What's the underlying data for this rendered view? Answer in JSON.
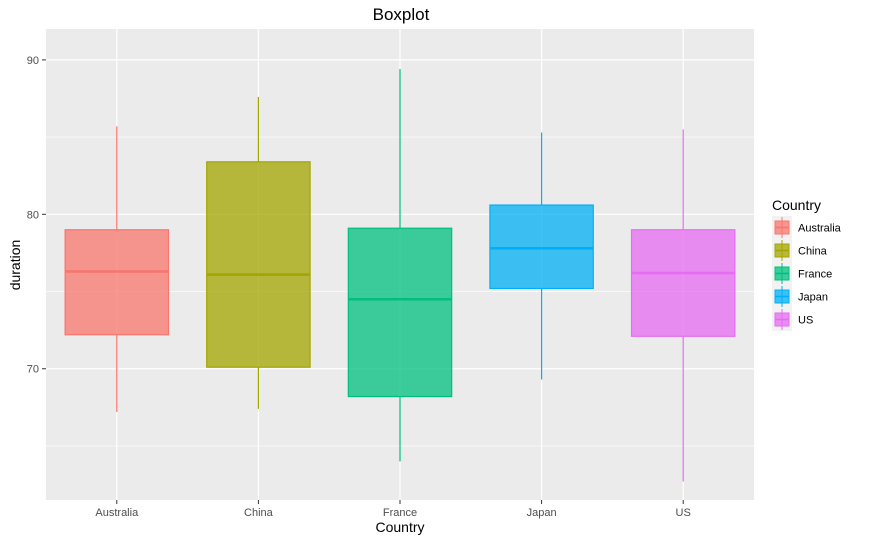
{
  "chart_data": {
    "type": "boxplot",
    "title": "Boxplot",
    "xlabel": "Country",
    "ylabel": "duration",
    "ylim": [
      61.5,
      92
    ],
    "yticks": [
      70,
      80,
      90
    ],
    "grid": true,
    "legend": {
      "title": "Country",
      "position": "right"
    },
    "categories": [
      "Australia",
      "China",
      "France",
      "Japan",
      "US"
    ],
    "series": [
      {
        "name": "Australia",
        "color": "#F8766D",
        "whisker_low": 67.2,
        "q1": 72.2,
        "median": 76.3,
        "q3": 79.0,
        "whisker_high": 85.7
      },
      {
        "name": "China",
        "color": "#A3A500",
        "whisker_low": 67.4,
        "q1": 70.1,
        "median": 76.1,
        "q3": 83.4,
        "whisker_high": 87.6
      },
      {
        "name": "France",
        "color": "#00BF7D",
        "whisker_low": 64.0,
        "q1": 68.2,
        "median": 74.5,
        "q3": 79.1,
        "whisker_high": 89.4
      },
      {
        "name": "Japan",
        "color": "#00B0F6",
        "whisker_low": 69.3,
        "q1": 75.2,
        "median": 77.8,
        "q3": 80.6,
        "whisker_high": 85.3
      },
      {
        "name": "US",
        "color": "#E76BF3",
        "whisker_low": 62.7,
        "q1": 72.1,
        "median": 76.2,
        "q3": 79.0,
        "whisker_high": 85.5
      }
    ]
  }
}
